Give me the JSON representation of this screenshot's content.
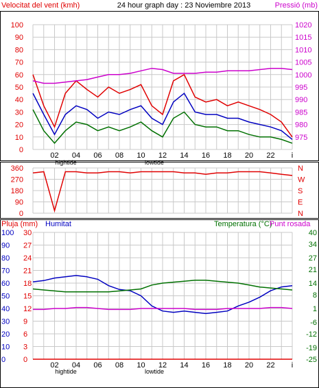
{
  "header": {
    "wind_title": "Velocitat del vent (kmh)",
    "graph_title": "24 hour graph day : 23 Noviembre 2013",
    "pressure_title": "Pressió (mb)"
  },
  "colors": {
    "wind_max": "#e00000",
    "wind_avg": "#0000c0",
    "wind_min": "#007000",
    "pressure": "#cc00cc",
    "rain": "#e00000",
    "humidity": "#0000c0",
    "temperature": "#007000",
    "dewpoint": "#cc00cc",
    "grid": "#c8c8c8"
  },
  "tide": {
    "high": "hightide",
    "low": "lowtide"
  },
  "hour_labels": [
    "02",
    "04",
    "06",
    "08",
    "10",
    "12",
    "14",
    "16",
    "18",
    "20",
    "22"
  ],
  "end_label": "i",
  "chart_data": [
    {
      "type": "line",
      "title": "24 hour graph day : 23 Noviembre 2013",
      "x": [
        0,
        1,
        2,
        3,
        4,
        5,
        6,
        7,
        8,
        9,
        10,
        11,
        12,
        13,
        14,
        15,
        16,
        17,
        18,
        19,
        20,
        21,
        22,
        23,
        24
      ],
      "left_axis": {
        "label": "Velocitat del vent (kmh)",
        "range": [
          0,
          100
        ],
        "ticks": [
          "0",
          "10",
          "20",
          "30",
          "40",
          "50",
          "60",
          "70",
          "80",
          "90",
          "100"
        ]
      },
      "right_axis": {
        "label": "Pressió (mb)",
        "range": [
          970,
          1020
        ],
        "ticks": [
          "975",
          "980",
          "985",
          "990",
          "995",
          "1000",
          "1005",
          "1010",
          "1015",
          "1020"
        ]
      },
      "series": [
        {
          "name": "wind_max",
          "axis": "left",
          "values": [
            60,
            35,
            18,
            45,
            55,
            48,
            42,
            50,
            45,
            48,
            52,
            35,
            28,
            55,
            60,
            42,
            38,
            40,
            35,
            38,
            35,
            32,
            28,
            22,
            10
          ]
        },
        {
          "name": "wind_avg",
          "axis": "left",
          "values": [
            45,
            28,
            12,
            28,
            35,
            32,
            25,
            30,
            28,
            32,
            35,
            25,
            20,
            38,
            45,
            30,
            28,
            28,
            25,
            25,
            22,
            20,
            18,
            15,
            8
          ]
        },
        {
          "name": "wind_min",
          "axis": "left",
          "values": [
            32,
            15,
            5,
            15,
            22,
            20,
            15,
            18,
            15,
            18,
            22,
            15,
            10,
            25,
            30,
            20,
            18,
            18,
            15,
            15,
            12,
            10,
            10,
            8,
            5
          ]
        },
        {
          "name": "pressure",
          "axis": "right",
          "values": [
            997.5,
            996.5,
            996.5,
            997,
            997.5,
            998,
            999,
            1000,
            1000,
            1000.5,
            1001.5,
            1002.5,
            1002,
            1000.5,
            1000.5,
            1000.5,
            1001,
            1001,
            1001.5,
            1001.5,
            1001.5,
            1002,
            1002.5,
            1002.5,
            1002
          ]
        }
      ]
    },
    {
      "type": "line",
      "x": [
        0,
        1,
        2,
        3,
        4,
        5,
        6,
        7,
        8,
        9,
        10,
        11,
        12,
        13,
        14,
        15,
        16,
        17,
        18,
        19,
        20,
        21,
        22,
        23,
        24
      ],
      "left_axis": {
        "range": [
          0,
          360
        ],
        "ticks": [
          "0",
          "90",
          "180",
          "270",
          "360"
        ]
      },
      "right_labels": [
        "N",
        "W",
        "S",
        "E",
        "N"
      ],
      "series": [
        {
          "name": "wind_direction",
          "values": [
            320,
            330,
            20,
            330,
            330,
            320,
            320,
            330,
            330,
            320,
            330,
            330,
            330,
            330,
            320,
            320,
            310,
            320,
            320,
            330,
            330,
            330,
            320,
            310,
            300
          ]
        }
      ]
    },
    {
      "type": "line",
      "x": [
        0,
        1,
        2,
        3,
        4,
        5,
        6,
        7,
        8,
        9,
        10,
        11,
        12,
        13,
        14,
        15,
        16,
        17,
        18,
        19,
        20,
        21,
        22,
        23,
        24
      ],
      "titles": {
        "rain": "Pluja (mm)",
        "humidity": "Humitat",
        "temperature": "Temperatura (°C)",
        "dewpoint": "Punt rosada"
      },
      "axis_rain": {
        "range": [
          0,
          30
        ],
        "ticks": [
          "0",
          "3",
          "6",
          "9",
          "12",
          "15",
          "18",
          "21",
          "24",
          "27",
          "30"
        ]
      },
      "axis_humidity": {
        "range": [
          0,
          100
        ],
        "ticks": [
          "0",
          "10",
          "20",
          "30",
          "40",
          "50",
          "60",
          "70",
          "80",
          "90",
          "100"
        ]
      },
      "axis_temperature": {
        "range": [
          -25,
          40
        ],
        "ticks": [
          "-25",
          "-19",
          "-12",
          "-6",
          "1",
          "8",
          "14",
          "21",
          "27",
          "34",
          "40"
        ]
      },
      "series": [
        {
          "name": "humidity",
          "axis": "humidity",
          "values": [
            61,
            62,
            64,
            65,
            66,
            65,
            63,
            58,
            55,
            54,
            50,
            42,
            38,
            37,
            38,
            37,
            36,
            37,
            38,
            42,
            45,
            49,
            54,
            57,
            58
          ]
        },
        {
          "name": "temperature",
          "axis": "temperature",
          "values": [
            11,
            10.5,
            10,
            9.5,
            9.5,
            9.5,
            9.5,
            9.5,
            10,
            10.5,
            11,
            13,
            14,
            14.5,
            15,
            15.5,
            15.5,
            15,
            14.5,
            14,
            13,
            12,
            11.5,
            11,
            10.5
          ]
        },
        {
          "name": "dewpoint",
          "axis": "temperature",
          "values": [
            0.5,
            0.5,
            1,
            1,
            1.5,
            1.5,
            1,
            0.5,
            0.5,
            0.5,
            1,
            1,
            1,
            1,
            1,
            0.5,
            0.5,
            0.5,
            1,
            1,
            1,
            1,
            1.5,
            1.5,
            1
          ]
        },
        {
          "name": "rain",
          "axis": "rain",
          "values": [
            0,
            0,
            0,
            0,
            0,
            0,
            0,
            0,
            0,
            0,
            0,
            0,
            0,
            0,
            0,
            0,
            0,
            0,
            0,
            0,
            0,
            0,
            0,
            0,
            0
          ]
        }
      ]
    }
  ]
}
